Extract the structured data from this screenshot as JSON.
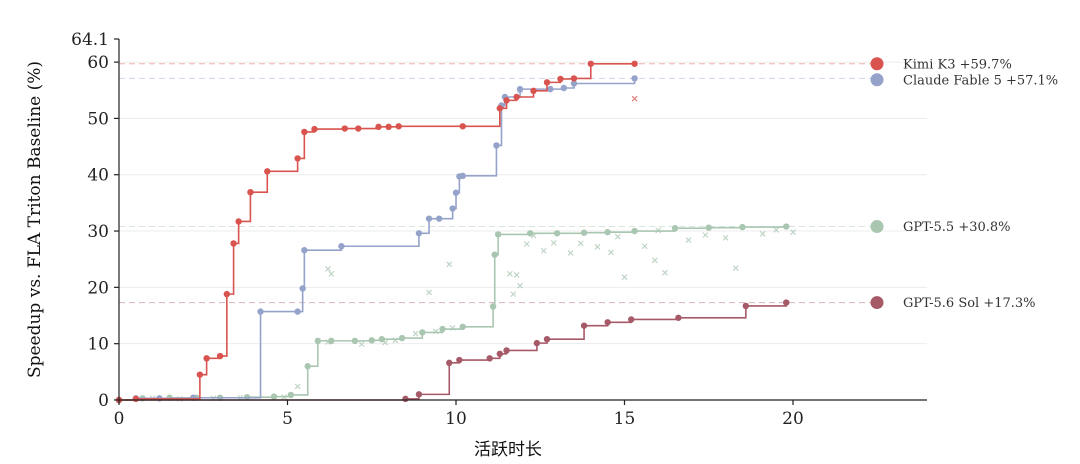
{
  "chart_data": {
    "type": "line",
    "title": "",
    "xlabel": "活跃时长",
    "ylabel": "Speedup vs. FLA Triton Baseline (%)",
    "xlim": [
      -0.3,
      24
    ],
    "ylim": [
      0,
      64.1
    ],
    "x_ticks": [
      0,
      5,
      10,
      15,
      20
    ],
    "y_ticks": [
      0,
      10,
      20,
      30,
      40,
      50,
      60
    ],
    "y_max_label": "64.1",
    "grid": "horizontal",
    "legend_position": "right",
    "series": [
      {
        "name": "Kimi K3",
        "final_label": "+59.7%",
        "final_value": 59.7,
        "color": "#d9534f",
        "points": [
          [
            0,
            0
          ],
          [
            0.5,
            0.2
          ],
          [
            2.4,
            4.5
          ],
          [
            2.6,
            7.4
          ],
          [
            3.0,
            7.8
          ],
          [
            3.2,
            18.8
          ],
          [
            3.4,
            27.8
          ],
          [
            3.55,
            31.7
          ],
          [
            3.9,
            36.9
          ],
          [
            4.4,
            40.6
          ],
          [
            5.3,
            42.9
          ],
          [
            5.5,
            47.6
          ],
          [
            5.8,
            48.1
          ],
          [
            6.7,
            48.2
          ],
          [
            7.1,
            48.2
          ],
          [
            7.7,
            48.5
          ],
          [
            8.0,
            48.5
          ],
          [
            8.3,
            48.6
          ],
          [
            10.2,
            48.6
          ],
          [
            11.3,
            51.8
          ],
          [
            11.5,
            53.2
          ],
          [
            11.8,
            53.8
          ],
          [
            12.3,
            54.9
          ],
          [
            12.7,
            56.4
          ],
          [
            13.1,
            57.0
          ],
          [
            13.5,
            57.1
          ],
          [
            14.0,
            59.7
          ],
          [
            15.3,
            59.7
          ]
        ]
      },
      {
        "name": "Claude Fable 5",
        "final_label": "+57.1%",
        "final_value": 57.1,
        "color": "#95a3cb",
        "points": [
          [
            0,
            0
          ],
          [
            0.5,
            0.3
          ],
          [
            1.2,
            0.3
          ],
          [
            2.2,
            0.4
          ],
          [
            4.2,
            15.7
          ],
          [
            5.3,
            15.7
          ],
          [
            5.45,
            19.8
          ],
          [
            5.5,
            26.6
          ],
          [
            6.6,
            27.3
          ],
          [
            8.9,
            29.6
          ],
          [
            9.2,
            32.2
          ],
          [
            9.5,
            32.2
          ],
          [
            9.9,
            34.0
          ],
          [
            10.0,
            36.8
          ],
          [
            10.1,
            39.7
          ],
          [
            10.2,
            39.8
          ],
          [
            11.2,
            45.2
          ],
          [
            11.35,
            52.3
          ],
          [
            11.45,
            53.8
          ],
          [
            11.9,
            55.2
          ],
          [
            12.8,
            55.2
          ],
          [
            13.2,
            55.4
          ],
          [
            13.5,
            56.2
          ],
          [
            15.3,
            57.1
          ]
        ]
      },
      {
        "name": "GPT-5.5",
        "final_label": "+30.8%",
        "final_value": 30.8,
        "color": "#a9c6b1",
        "points": [
          [
            0,
            0
          ],
          [
            0.7,
            0.3
          ],
          [
            1.5,
            0.4
          ],
          [
            2.3,
            0.4
          ],
          [
            3.0,
            0.4
          ],
          [
            3.8,
            0.5
          ],
          [
            4.6,
            0.6
          ],
          [
            5.1,
            0.9
          ],
          [
            5.6,
            6.0
          ],
          [
            5.9,
            10.5
          ],
          [
            6.3,
            10.5
          ],
          [
            7.0,
            10.5
          ],
          [
            7.5,
            10.6
          ],
          [
            7.8,
            10.8
          ],
          [
            8.4,
            11.0
          ],
          [
            9.0,
            12.0
          ],
          [
            9.6,
            12.6
          ],
          [
            10.2,
            13.0
          ],
          [
            11.1,
            16.6
          ],
          [
            11.15,
            25.8
          ],
          [
            11.25,
            29.4
          ],
          [
            12.2,
            29.6
          ],
          [
            13.0,
            29.6
          ],
          [
            13.8,
            29.7
          ],
          [
            14.5,
            29.8
          ],
          [
            15.3,
            30.0
          ],
          [
            16.5,
            30.5
          ],
          [
            17.5,
            30.6
          ],
          [
            18.5,
            30.7
          ],
          [
            19.8,
            30.8
          ]
        ]
      },
      {
        "name": "GPT-5.6 Sol",
        "final_label": "+17.3%",
        "final_value": 17.3,
        "color": "#a65a68",
        "points": [
          [
            0,
            0
          ],
          [
            8.5,
            0.2
          ],
          [
            8.9,
            1.0
          ],
          [
            9.8,
            6.6
          ],
          [
            10.1,
            7.1
          ],
          [
            11.0,
            7.4
          ],
          [
            11.3,
            8.2
          ],
          [
            11.5,
            8.8
          ],
          [
            12.4,
            10.1
          ],
          [
            12.7,
            10.8
          ],
          [
            13.8,
            13.2
          ],
          [
            14.5,
            13.8
          ],
          [
            15.2,
            14.3
          ],
          [
            16.6,
            14.6
          ],
          [
            18.6,
            16.7
          ],
          [
            19.8,
            17.3
          ]
        ]
      }
    ],
    "rejected_attempts": [
      {
        "series": "GPT-5.5",
        "points": [
          [
            1.0,
            0.3
          ],
          [
            1.8,
            0.2
          ],
          [
            2.8,
            0.3
          ],
          [
            3.6,
            0.4
          ],
          [
            4.9,
            0.5
          ],
          [
            5.3,
            2.4
          ],
          [
            6.2,
            10.3
          ],
          [
            7.2,
            9.9
          ],
          [
            7.9,
            10.2
          ],
          [
            8.2,
            10.6
          ],
          [
            8.8,
            11.8
          ],
          [
            9.4,
            12.2
          ],
          [
            9.9,
            12.8
          ],
          [
            11.6,
            22.4
          ],
          [
            11.8,
            22.2
          ],
          [
            11.9,
            20.3
          ],
          [
            11.7,
            18.8
          ],
          [
            12.1,
            27.7
          ],
          [
            12.6,
            26.5
          ],
          [
            12.9,
            27.9
          ],
          [
            13.4,
            26.1
          ],
          [
            13.7,
            27.8
          ],
          [
            14.2,
            27.2
          ],
          [
            14.6,
            26.2
          ],
          [
            15.0,
            21.8
          ],
          [
            15.6,
            27.3
          ],
          [
            15.9,
            24.8
          ],
          [
            16.2,
            22.6
          ],
          [
            16.9,
            28.4
          ],
          [
            17.4,
            29.3
          ],
          [
            18.0,
            28.8
          ],
          [
            18.3,
            23.4
          ],
          [
            19.1,
            29.5
          ],
          [
            19.5,
            30.2
          ],
          [
            20.0,
            29.8
          ],
          [
            6.2,
            23.3
          ],
          [
            6.3,
            22.4
          ],
          [
            9.2,
            19.1
          ],
          [
            9.8,
            24.1
          ],
          [
            12.3,
            29.2
          ],
          [
            14.8,
            29.0
          ],
          [
            16.0,
            30.1
          ]
        ]
      },
      {
        "series": "Kimi K3",
        "points": [
          [
            15.3,
            53.5
          ]
        ]
      },
      {
        "series": "Claude Fable 5",
        "points": [
          [
            11.9,
            55.0
          ]
        ]
      }
    ]
  }
}
